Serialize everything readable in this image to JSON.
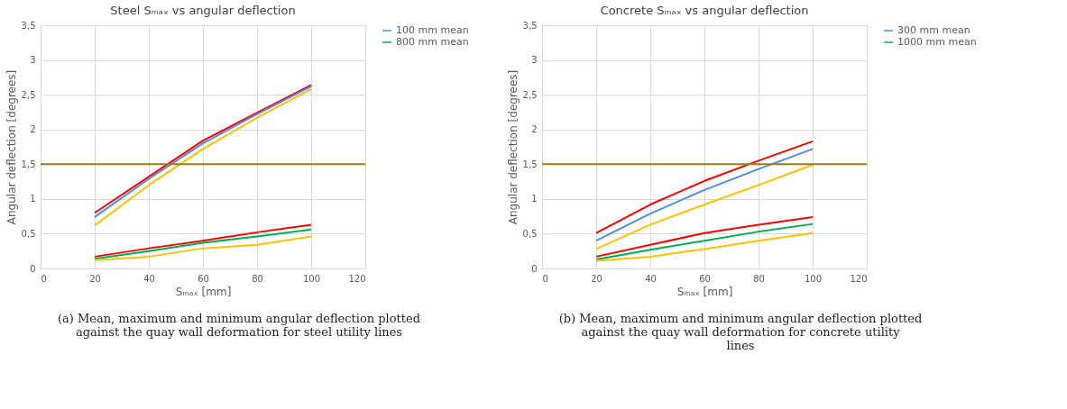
{
  "chart_data": [
    {
      "type": "line",
      "title": "Steel Sₘₐₓ vs angular deflection",
      "xlabel": "Sₘₐₓ [mm]",
      "ylabel": "Angular deflection [degrees]",
      "x": [
        20,
        40,
        60,
        80,
        100
      ],
      "series": [
        {
          "color": "#ff0000",
          "values": [
            0.8,
            1.32,
            1.84,
            2.24,
            2.64
          ]
        },
        {
          "name": "100 mm mean",
          "color": "#4a8df0",
          "values": [
            0.74,
            1.29,
            1.8,
            2.22,
            2.62
          ]
        },
        {
          "color": "#ffc000",
          "values": [
            0.62,
            1.2,
            1.72,
            2.17,
            2.58
          ]
        },
        {
          "color": "#ff0000",
          "values": [
            0.17,
            0.29,
            0.4,
            0.52,
            0.63
          ]
        },
        {
          "name": "800 mm mean",
          "color": "#00b050",
          "values": [
            0.14,
            0.25,
            0.37,
            0.46,
            0.56
          ]
        },
        {
          "color": "#ffc000",
          "values": [
            0.12,
            0.17,
            0.29,
            0.34,
            0.46
          ]
        }
      ],
      "xlim": [
        0,
        120
      ],
      "xticks": [
        0,
        20,
        40,
        60,
        80,
        100,
        120
      ],
      "ylim": [
        0,
        3.5
      ],
      "yticks": [
        0,
        {
          "value": 0.5,
          "label": "0,5"
        },
        1,
        {
          "value": 1.5,
          "label": "1,5"
        },
        2,
        {
          "value": 2.5,
          "label": "2,5"
        },
        3,
        {
          "value": 3.5,
          "label": "3,5"
        }
      ],
      "ref_lines": [
        {
          "axis": "y",
          "value": 1.5,
          "color": "#9c7a14"
        }
      ],
      "grid": true,
      "legend": "right",
      "line_style": "solid",
      "marker": "none",
      "annotations": [
        "(a) Mean, maximum and minimum angular deflection plotted against the quay wall deformation for steel utility lines"
      ]
    },
    {
      "type": "line",
      "title": "Concrete Sₘₐₓ vs angular deflection",
      "xlabel": "Sₘₐₓ [mm]",
      "ylabel": "Angular deflection [degrees]",
      "x": [
        20,
        40,
        60,
        80,
        100
      ],
      "series": [
        {
          "color": "#ff0000",
          "values": [
            0.51,
            0.92,
            1.26,
            1.55,
            1.83
          ]
        },
        {
          "name": "300 mm mean",
          "color": "#4a8df0",
          "values": [
            0.4,
            0.79,
            1.13,
            1.43,
            1.72
          ]
        },
        {
          "color": "#ffc000",
          "values": [
            0.28,
            0.63,
            0.92,
            1.2,
            1.49
          ]
        },
        {
          "color": "#ff0000",
          "values": [
            0.17,
            0.34,
            0.51,
            0.63,
            0.74
          ]
        },
        {
          "name": "1000 mm mean",
          "color": "#00b050",
          "values": [
            0.13,
            0.27,
            0.4,
            0.53,
            0.64
          ]
        },
        {
          "color": "#ffc000",
          "values": [
            0.11,
            0.17,
            0.28,
            0.4,
            0.51
          ]
        }
      ],
      "xlim": [
        0,
        120
      ],
      "xticks": [
        0,
        20,
        40,
        60,
        80,
        100,
        120
      ],
      "ylim": [
        0,
        3.5
      ],
      "yticks": [
        0,
        {
          "value": 0.5,
          "label": "0,5"
        },
        1,
        {
          "value": 1.5,
          "label": "1,5"
        },
        2,
        {
          "value": 2.5,
          "label": "2,5"
        },
        3,
        {
          "value": 3.5,
          "label": "3,5"
        }
      ],
      "ref_lines": [
        {
          "axis": "y",
          "value": 1.5,
          "color": "#9c7a14"
        }
      ],
      "grid": true,
      "legend": "right",
      "line_style": "solid",
      "marker": "none",
      "annotations": [
        "(b) Mean, maximum and minimum angular deflection plotted against the quay wall deformation for concrete utility lines"
      ]
    }
  ]
}
